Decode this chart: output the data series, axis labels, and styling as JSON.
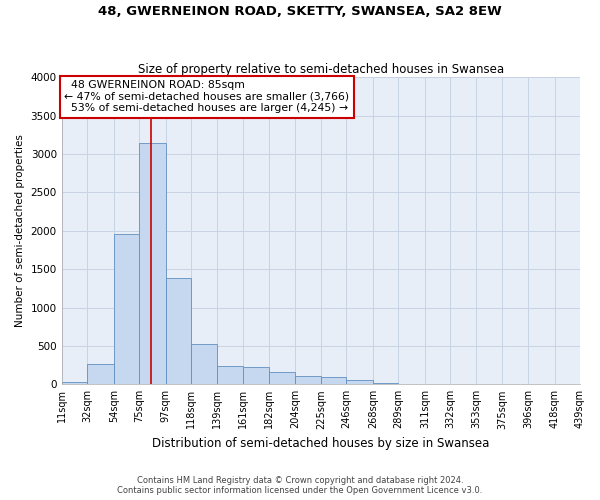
{
  "title": "48, GWERNEINON ROAD, SKETTY, SWANSEA, SA2 8EW",
  "subtitle": "Size of property relative to semi-detached houses in Swansea",
  "xlabel": "Distribution of semi-detached houses by size in Swansea",
  "ylabel": "Number of semi-detached properties",
  "footer_line1": "Contains HM Land Registry data © Crown copyright and database right 2024.",
  "footer_line2": "Contains public sector information licensed under the Open Government Licence v3.0.",
  "property_label": "48 GWERNEINON ROAD: 85sqm",
  "pct_smaller": 47,
  "count_smaller": 3766,
  "pct_larger": 53,
  "count_larger": 4245,
  "bin_edges": [
    11,
    32,
    54,
    75,
    97,
    118,
    139,
    161,
    182,
    204,
    225,
    246,
    268,
    289,
    311,
    332,
    353,
    375,
    396,
    418,
    439
  ],
  "bin_counts": [
    25,
    270,
    1960,
    3140,
    1390,
    530,
    240,
    230,
    160,
    110,
    90,
    60,
    20,
    5,
    2,
    1,
    1,
    0,
    0,
    0
  ],
  "bar_color": "#c5d8f0",
  "bar_edge_color": "#6090c0",
  "vline_color": "#cc0000",
  "vline_x": 85,
  "annotation_box_color": "#cc0000",
  "grid_color": "#c8d4e4",
  "bg_color": "#e8eef8",
  "ylim": [
    0,
    4000
  ],
  "tick_labels": [
    "11sqm",
    "32sqm",
    "54sqm",
    "75sqm",
    "97sqm",
    "118sqm",
    "139sqm",
    "161sqm",
    "182sqm",
    "204sqm",
    "225sqm",
    "246sqm",
    "268sqm",
    "289sqm",
    "311sqm",
    "332sqm",
    "353sqm",
    "375sqm",
    "396sqm",
    "418sqm",
    "439sqm"
  ]
}
